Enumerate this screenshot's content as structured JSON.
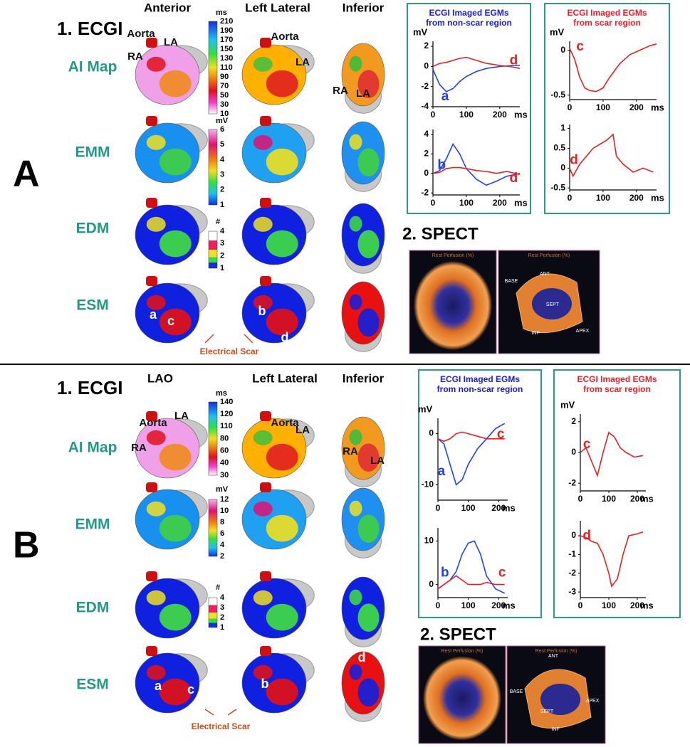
{
  "panels": [
    {
      "letter": "A",
      "ecgi_title": "1. ECGI",
      "views": [
        "Anterior",
        "Left Lateral",
        "Inferior"
      ],
      "rows": [
        "AI Map",
        "EMM",
        "EDM",
        "ESM"
      ],
      "colorbars": [
        {
          "unit": "ms",
          "labels": [
            210,
            190,
            170,
            150,
            130,
            110,
            90,
            70,
            50,
            30,
            10
          ]
        },
        {
          "unit": "mV",
          "labels": [
            6,
            5,
            4,
            3,
            2,
            1
          ]
        },
        {
          "unit": "#",
          "labels": [
            4,
            3,
            2,
            1
          ]
        }
      ],
      "annotations": [
        "Aorta",
        "LA",
        "RA",
        "Aorta",
        "LA",
        "RA",
        "LA",
        "a",
        "c",
        "b",
        "d"
      ],
      "scar_label": "Electrical Scar",
      "egm": [
        {
          "title": [
            "ECGI Imaged EGMs",
            "from non-scar region"
          ],
          "plots": [
            {
              "y_unit": "mV",
              "x_unit": "ms",
              "xlim": [
                0,
                260
              ],
              "xticks": [
                0,
                100,
                200
              ],
              "ylim": [
                -4,
                2.5
              ],
              "yticks": [
                2,
                0,
                -2,
                -4
              ],
              "curves": [
                {
                  "name": "a",
                  "color": "#2040ff",
                  "x": [
                    0,
                    20,
                    40,
                    60,
                    80,
                    100,
                    130,
                    160,
                    200,
                    240,
                    260
                  ],
                  "values": [
                    -0.3,
                    -1.8,
                    -2.5,
                    -2.2,
                    -1.5,
                    -1,
                    -0.5,
                    -0.2,
                    0,
                    0.1,
                    0.1
                  ]
                },
                {
                  "name": "d",
                  "color": "#e82020",
                  "x": [
                    0,
                    20,
                    40,
                    60,
                    80,
                    100,
                    130,
                    160,
                    200,
                    230,
                    260
                  ],
                  "values": [
                    0,
                    0.3,
                    0.4,
                    0.6,
                    0.8,
                    0.9,
                    0.6,
                    0.3,
                    0.1,
                    0,
                    -0.2
                  ]
                }
              ]
            },
            {
              "x_unit": "ms",
              "xlim": [
                0,
                260
              ],
              "xticks": [
                0,
                100,
                200
              ],
              "ylim": [
                -2.2,
                4.5
              ],
              "yticks": [
                4,
                2,
                0,
                -2
              ],
              "curves": [
                {
                  "name": "b",
                  "color": "#2040ff",
                  "x": [
                    0,
                    20,
                    40,
                    60,
                    80,
                    100,
                    130,
                    160,
                    190,
                    220,
                    260
                  ],
                  "values": [
                    0,
                    0.3,
                    1.5,
                    3,
                    2,
                    0.5,
                    -0.6,
                    -1.2,
                    -0.8,
                    -0.3,
                    0
                  ]
                },
                {
                  "name": "d",
                  "color": "#e82020",
                  "x": [
                    0,
                    20,
                    40,
                    60,
                    80,
                    100,
                    130,
                    160,
                    190,
                    220,
                    260
                  ],
                  "values": [
                    0,
                    0.1,
                    0.5,
                    0.6,
                    0.6,
                    0.5,
                    0.3,
                    0.2,
                    0,
                    0.2,
                    -0.1
                  ]
                }
              ]
            }
          ]
        },
        {
          "title": [
            "ECGI Imaged EGMs",
            "from scar region"
          ],
          "plots": [
            {
              "y_unit": "mV",
              "x_unit": "ms",
              "xlim": [
                0,
                260
              ],
              "xticks": [
                0,
                100,
                200
              ],
              "ylim": [
                -0.55,
                0.1
              ],
              "yticks": [
                0,
                -0.5
              ],
              "curves": [
                {
                  "name": "c",
                  "color": "#e82020",
                  "x": [
                    0,
                    15,
                    30,
                    45,
                    60,
                    80,
                    100,
                    120,
                    150,
                    180,
                    210,
                    240,
                    260
                  ],
                  "values": [
                    0.02,
                    -0.1,
                    -0.3,
                    -0.42,
                    -0.45,
                    -0.46,
                    -0.42,
                    -0.3,
                    -0.15,
                    -0.05,
                    0,
                    0.05,
                    0.07
                  ]
                }
              ]
            },
            {
              "x_unit": "ms",
              "xlim": [
                0,
                260
              ],
              "xticks": [
                0,
                100,
                200
              ],
              "ylim": [
                -0.55,
                1.1
              ],
              "yticks": [
                1,
                0.5,
                0,
                -0.5
              ],
              "curves": [
                {
                  "name": "d",
                  "color": "#e82020",
                  "x": [
                    0,
                    10,
                    30,
                    50,
                    70,
                    90,
                    110,
                    130,
                    140,
                    160,
                    190,
                    220,
                    250
                  ],
                  "values": [
                    0,
                    -0.2,
                    0.1,
                    0.3,
                    0.5,
                    0.6,
                    0.7,
                    0.85,
                    0.3,
                    0.1,
                    -0.1,
                    0,
                    -0.1
                  ]
                }
              ]
            }
          ]
        }
      ],
      "spect": {
        "title": "2. SPECT",
        "image_titles": [
          "Rest Perfusion (%)",
          "Rest Perfusion (%)"
        ],
        "labels": [
          "BASE",
          "ANT",
          "SEPT",
          "INF",
          "APEX"
        ]
      }
    },
    {
      "letter": "B",
      "ecgi_title": "1. ECGI",
      "views": [
        "LAO",
        "Left Lateral",
        "Inferior"
      ],
      "rows": [
        "AI Map",
        "EMM",
        "EDM",
        "ESM"
      ],
      "colorbars": [
        {
          "unit": "ms",
          "labels": [
            140,
            120,
            110,
            80,
            60,
            40,
            30
          ]
        },
        {
          "unit": "mV",
          "labels": [
            12,
            10,
            8,
            6,
            4,
            2
          ]
        },
        {
          "unit": "#",
          "labels": [
            4,
            3,
            2,
            1
          ]
        }
      ],
      "annotations": [
        "Aorta",
        "LA",
        "RA",
        "Aorta",
        "LA",
        "RA",
        "LA",
        "a",
        "c",
        "b",
        "d"
      ],
      "scar_label": "Electrical Scar",
      "egm": [
        {
          "title": [
            "ECGI Imaged EGMs",
            "from non-scar region"
          ],
          "plots": [
            {
              "y_unit": "mV",
              "x_unit": "ms",
              "xlim": [
                0,
                230
              ],
              "xticks": [
                0,
                100,
                200
              ],
              "ylim": [
                -13,
                3
              ],
              "yticks": [
                0,
                -10
              ],
              "curves": [
                {
                  "name": "a",
                  "color": "#2040ff",
                  "x": [
                    0,
                    20,
                    40,
                    60,
                    80,
                    100,
                    130,
                    160,
                    190,
                    220
                  ],
                  "values": [
                    -1,
                    -2,
                    -6,
                    -10,
                    -9,
                    -6,
                    -3,
                    -1,
                    1,
                    2
                  ]
                },
                {
                  "name": "c",
                  "color": "#e82020",
                  "x": [
                    0,
                    20,
                    40,
                    60,
                    80,
                    100,
                    130,
                    160,
                    190,
                    220
                  ],
                  "values": [
                    -1,
                    -1.5,
                    -1,
                    0,
                    0.3,
                    0,
                    -0.5,
                    -1,
                    -1,
                    -1
                  ]
                }
              ]
            },
            {
              "x_unit": "ms",
              "xlim": [
                0,
                230
              ],
              "xticks": [
                0,
                100,
                200
              ],
              "ylim": [
                -3,
                13
              ],
              "yticks": [
                10,
                0
              ],
              "curves": [
                {
                  "name": "b",
                  "color": "#2040ff",
                  "x": [
                    0,
                    20,
                    40,
                    60,
                    80,
                    100,
                    120,
                    140,
                    160,
                    190,
                    220
                  ],
                  "values": [
                    -1,
                    0,
                    1,
                    3,
                    7,
                    9.5,
                    10,
                    7,
                    2,
                    -1,
                    -2
                  ]
                },
                {
                  "name": "c",
                  "color": "#e82020",
                  "x": [
                    0,
                    20,
                    40,
                    60,
                    80,
                    100,
                    120,
                    140,
                    160,
                    190,
                    220
                  ],
                  "values": [
                    -1,
                    0,
                    1,
                    2,
                    1,
                    0,
                    0,
                    0,
                    0.5,
                    0,
                    0
                  ]
                }
              ]
            }
          ]
        },
        {
          "title": [
            "ECGI Imaged EGMs",
            "from scar region"
          ],
          "plots": [
            {
              "y_unit": "mV",
              "x_unit": "ms",
              "xlim": [
                0,
                230
              ],
              "xticks": [
                0,
                100,
                200
              ],
              "ylim": [
                -2.5,
                2.5
              ],
              "yticks": [
                2,
                0,
                -2
              ],
              "curves": [
                {
                  "name": "c",
                  "color": "#e82020",
                  "x": [
                    0,
                    20,
                    40,
                    60,
                    80,
                    100,
                    120,
                    140,
                    160,
                    190,
                    220
                  ],
                  "values": [
                    0,
                    0.3,
                    -0.6,
                    -1.5,
                    0,
                    1.3,
                    1,
                    0.3,
                    0,
                    -0.3,
                    -0.2
                  ]
                }
              ]
            },
            {
              "x_unit": "ms",
              "xlim": [
                0,
                230
              ],
              "xticks": [
                0,
                100,
                200
              ],
              "ylim": [
                -3.3,
                0.8
              ],
              "yticks": [
                0,
                -1,
                -2,
                -3
              ],
              "curves": [
                {
                  "name": "d",
                  "color": "#e82020",
                  "x": [
                    0,
                    20,
                    40,
                    60,
                    80,
                    100,
                    110,
                    130,
                    150,
                    170,
                    200,
                    220
                  ],
                  "values": [
                    0,
                    -0.1,
                    -0.3,
                    -0.4,
                    -1,
                    -2,
                    -2.7,
                    -2.3,
                    -1,
                    0,
                    0.1,
                    0.2
                  ]
                }
              ]
            }
          ]
        }
      ],
      "spect": {
        "title": "2. SPECT",
        "image_titles": [
          "Rest Perfusion (%)",
          "Rest Perfusion (%)"
        ],
        "labels": [
          "BASE",
          "ANT",
          "SEPT",
          "INF",
          "APEX"
        ]
      }
    }
  ]
}
